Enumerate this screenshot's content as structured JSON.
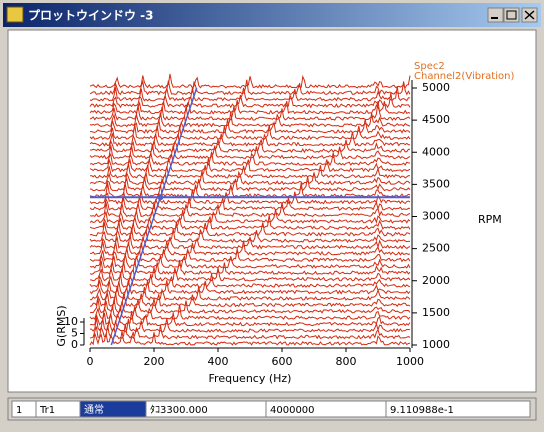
{
  "window": {
    "title": "プロットウインドウ -3"
  },
  "plot": {
    "legend": [
      "Spec2",
      "Channel2(Vibration)"
    ],
    "x_label": "Frequency  (Hz)",
    "x_lim": [
      0,
      1000
    ],
    "x_ticks": [
      0,
      200,
      400,
      600,
      800,
      1000
    ],
    "rpm_label": "RPM",
    "rpm_lim": [
      1000,
      5000
    ],
    "rpm_ticks": [
      1000,
      1500,
      2000,
      2500,
      3000,
      3500,
      4000,
      4500,
      5000
    ],
    "amp_label": "G(RMS)",
    "amp_ticks": [
      0,
      5,
      10
    ],
    "trace_rpms": [
      1000,
      1100,
      1200,
      1300,
      1400,
      1500,
      1600,
      1700,
      1800,
      1900,
      2000,
      2100,
      2200,
      2300,
      2400,
      2500,
      2600,
      2700,
      2800,
      2900,
      3000,
      3100,
      3200,
      3300,
      3400,
      3500,
      3600,
      3700,
      3800,
      3900,
      4000,
      4100,
      4200,
      4300,
      4400,
      4500,
      4600,
      4700,
      4800,
      4900,
      5000
    ],
    "orders": [
      1,
      2,
      3,
      4,
      6,
      8,
      12
    ],
    "highlight_order": 4,
    "cursor_rpm": 3300,
    "trace_color": "#d42a10",
    "cursor_color": "#4a5fd0"
  },
  "status_bar": {
    "cells": [
      "1",
      "Tr1",
      "通常",
      "ﾀｺ3300.000",
      "4000000",
      "9.110988e-1"
    ]
  }
}
